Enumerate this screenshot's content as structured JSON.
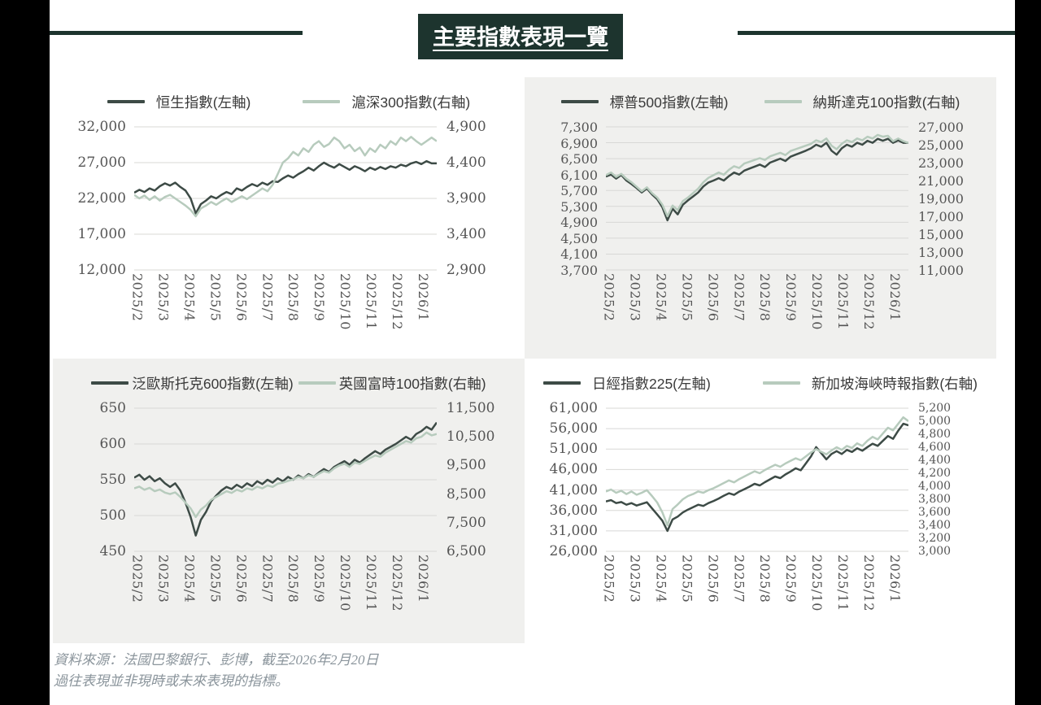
{
  "title": "主要指數表現一覽",
  "colors": {
    "dark_line": "#3d4b46",
    "light_line": "#b7cbbd",
    "title_bg": "#1d342e",
    "panel_gray": "#f0f0ee",
    "border_black": "#000000",
    "tick_text": "#555555"
  },
  "footer": {
    "line1": "資料來源：法國巴黎銀行、彭博，截至2026年2月20日",
    "line2": "過往表現並非現時或未來表現的指標。"
  },
  "chart_data": [
    {
      "type": "line",
      "x": [
        "2025/2",
        "2025/3",
        "2025/4",
        "2025/5",
        "2025/6",
        "2025/7",
        "2025/8",
        "2025/9",
        "2025/10",
        "2025/11",
        "2025/12",
        "2026/1"
      ],
      "left_axis": {
        "ticks": [
          "32,000",
          "27,000",
          "22,000",
          "17,000",
          "12,000"
        ],
        "min": 12000,
        "max": 32000
      },
      "right_axis": {
        "ticks": [
          "4,900",
          "4,400",
          "3,900",
          "3,400",
          "2,900"
        ],
        "min": 2900,
        "max": 4900
      },
      "series": [
        {
          "name": "恒生指數(左軸)",
          "axis": "left",
          "color": "#3d4b46",
          "values": [
            22800,
            23200,
            22900,
            23400,
            23100,
            23700,
            24100,
            23800,
            24200,
            23600,
            23100,
            22000,
            19900,
            21200,
            21700,
            22300,
            22000,
            22500,
            22900,
            22600,
            23400,
            23100,
            23600,
            24000,
            23700,
            24200,
            23900,
            24400,
            24300,
            24800,
            25200,
            24900,
            25400,
            25800,
            26300,
            25900,
            26500,
            27000,
            26600,
            26300,
            26800,
            26400,
            26000,
            26500,
            26200,
            25800,
            26300,
            26000,
            26400,
            26100,
            26500,
            26300,
            26700,
            26500,
            26900,
            27100,
            26800,
            27200,
            26900,
            26900
          ]
        },
        {
          "name": "滬深300指數(右軸)",
          "axis": "right",
          "color": "#b7cbbd",
          "values": [
            3950,
            3900,
            3940,
            3880,
            3930,
            3870,
            3920,
            3950,
            3900,
            3850,
            3800,
            3740,
            3650,
            3760,
            3800,
            3850,
            3810,
            3860,
            3900,
            3850,
            3890,
            3930,
            3890,
            3940,
            3990,
            4040,
            4000,
            4090,
            4240,
            4400,
            4460,
            4550,
            4500,
            4600,
            4550,
            4650,
            4700,
            4620,
            4660,
            4750,
            4700,
            4600,
            4650,
            4560,
            4610,
            4500,
            4600,
            4550,
            4650,
            4600,
            4700,
            4650,
            4750,
            4700,
            4760,
            4700,
            4650,
            4700,
            4750,
            4700
          ]
        }
      ]
    },
    {
      "type": "line",
      "x": [
        "2025/2",
        "2025/3",
        "2025/4",
        "2025/5",
        "2025/6",
        "2025/7",
        "2025/8",
        "2025/9",
        "2025/10",
        "2025/11",
        "2025/12",
        "2026/1"
      ],
      "left_axis": {
        "ticks": [
          "7,300",
          "6,900",
          "6,500",
          "6,100",
          "5,700",
          "5,300",
          "4,900",
          "4,500",
          "4,100",
          "3,700"
        ],
        "min": 3700,
        "max": 7300
      },
      "right_axis": {
        "ticks": [
          "27,000",
          "25,000",
          "23,000",
          "21,000",
          "19,000",
          "17,000",
          "15,000",
          "13,000",
          "11,000"
        ],
        "min": 11000,
        "max": 27000
      },
      "series": [
        {
          "name": "標普500指數(左軸)",
          "axis": "left",
          "color": "#3d4b46",
          "values": [
            6050,
            6100,
            6000,
            6090,
            5950,
            5860,
            5760,
            5650,
            5750,
            5600,
            5480,
            5280,
            4950,
            5240,
            5100,
            5340,
            5450,
            5550,
            5650,
            5800,
            5900,
            5950,
            6010,
            5950,
            6060,
            6150,
            6100,
            6200,
            6250,
            6300,
            6350,
            6290,
            6400,
            6450,
            6500,
            6440,
            6550,
            6600,
            6650,
            6700,
            6760,
            6850,
            6800,
            6900,
            6700,
            6600,
            6760,
            6850,
            6800,
            6900,
            6850,
            6950,
            6900,
            7000,
            6950,
            7000,
            6900,
            6960,
            6900,
            6900
          ]
        },
        {
          "name": "納斯達克100指數(右軸)",
          "axis": "right",
          "color": "#b7cbbd",
          "values": [
            21600,
            21900,
            21400,
            21750,
            21200,
            20800,
            20300,
            19800,
            20250,
            19600,
            19100,
            18300,
            17000,
            18200,
            17700,
            18700,
            19100,
            19600,
            20100,
            20800,
            21300,
            21600,
            21900,
            21650,
            22200,
            22600,
            22400,
            22900,
            23100,
            23300,
            23500,
            23300,
            23700,
            23900,
            24100,
            23850,
            24300,
            24500,
            24700,
            24900,
            25100,
            25500,
            25300,
            25700,
            24900,
            24500,
            25100,
            25500,
            25300,
            25700,
            25500,
            25900,
            25700,
            26100,
            25900,
            26000,
            25400,
            25700,
            25400,
            25200
          ]
        }
      ]
    },
    {
      "type": "line",
      "x": [
        "2025/2",
        "2025/3",
        "2025/4",
        "2025/5",
        "2025/6",
        "2025/7",
        "2025/8",
        "2025/9",
        "2025/10",
        "2025/11",
        "2025/12",
        "2026/1"
      ],
      "left_axis": {
        "ticks": [
          "650",
          "600",
          "550",
          "500",
          "450"
        ],
        "min": 450,
        "max": 650
      },
      "right_axis": {
        "ticks": [
          "11,500",
          "10,500",
          "9,500",
          "8,500",
          "7,500",
          "6,500"
        ],
        "min": 6500,
        "max": 11500
      },
      "series": [
        {
          "name": "泛歐斯托克600指數(左軸)",
          "axis": "left",
          "color": "#3d4b46",
          "values": [
            553,
            557,
            550,
            555,
            548,
            552,
            545,
            540,
            545,
            535,
            518,
            498,
            472,
            494,
            505,
            520,
            528,
            535,
            540,
            537,
            543,
            539,
            545,
            541,
            548,
            544,
            550,
            546,
            552,
            548,
            554,
            550,
            556,
            552,
            558,
            554,
            560,
            565,
            561,
            568,
            572,
            576,
            571,
            578,
            574,
            580,
            585,
            590,
            586,
            592,
            596,
            600,
            605,
            610,
            606,
            614,
            618,
            624,
            620,
            630
          ]
        },
        {
          "name": "英國富時100指數(右軸)",
          "axis": "right",
          "color": "#b7cbbd",
          "values": [
            8700,
            8760,
            8650,
            8720,
            8600,
            8660,
            8550,
            8500,
            8560,
            8400,
            8200,
            8000,
            7700,
            7960,
            8100,
            8300,
            8400,
            8500,
            8600,
            8540,
            8650,
            8590,
            8700,
            8650,
            8760,
            8700,
            8800,
            8750,
            8860,
            8900,
            8960,
            9010,
            9100,
            9050,
            9160,
            9100,
            9210,
            9300,
            9250,
            9400,
            9500,
            9560,
            9450,
            9600,
            9550,
            9660,
            9760,
            9850,
            9800,
            9950,
            10050,
            10150,
            10250,
            10350,
            10300,
            10450,
            10500,
            10650,
            10550,
            10600
          ]
        }
      ]
    },
    {
      "type": "line",
      "x": [
        "2025/2",
        "2025/3",
        "2025/4",
        "2025/5",
        "2025/6",
        "2025/7",
        "2025/8",
        "2025/9",
        "2025/10",
        "2025/11",
        "2025/12",
        "2026/1"
      ],
      "left_axis": {
        "ticks": [
          "61,000",
          "56,000",
          "51,000",
          "46,000",
          "41,000",
          "36,000",
          "31,000",
          "26,000"
        ],
        "min": 26000,
        "max": 61000
      },
      "right_axis": {
        "ticks": [
          "5,200",
          "5,000",
          "4,800",
          "4,600",
          "4,400",
          "4,200",
          "4,000",
          "3,800",
          "3,600",
          "3,400",
          "3,200",
          "3,000"
        ],
        "min": 3000,
        "max": 5200
      },
      "series": [
        {
          "name": "日經指數225(左軸)",
          "axis": "left",
          "color": "#3d4b46",
          "values": [
            38200,
            38500,
            37800,
            38050,
            37400,
            37800,
            37200,
            37600,
            38000,
            36500,
            35000,
            33500,
            31000,
            33800,
            34500,
            35500,
            36200,
            36800,
            37400,
            37100,
            37800,
            38300,
            38900,
            39600,
            40200,
            39800,
            40600,
            41200,
            41800,
            42500,
            42100,
            42900,
            43600,
            44300,
            43900,
            44800,
            45500,
            46300,
            45800,
            47500,
            49200,
            51500,
            50000,
            48500,
            49800,
            50500,
            49800,
            50800,
            50300,
            51200,
            50600,
            51500,
            52300,
            51800,
            53000,
            54200,
            53500,
            55500,
            57200,
            56800
          ]
        },
        {
          "name": "新加坡海峽時報指數(右軸)",
          "axis": "right",
          "color": "#b7cbbd",
          "values": [
            3920,
            3950,
            3900,
            3930,
            3880,
            3920,
            3870,
            3900,
            3940,
            3850,
            3750,
            3600,
            3400,
            3650,
            3720,
            3800,
            3850,
            3880,
            3920,
            3900,
            3940,
            3970,
            4010,
            4050,
            4090,
            4060,
            4110,
            4150,
            4190,
            4230,
            4200,
            4250,
            4290,
            4330,
            4300,
            4350,
            4390,
            4430,
            4400,
            4460,
            4520,
            4570,
            4530,
            4490,
            4550,
            4600,
            4560,
            4620,
            4590,
            4660,
            4620,
            4700,
            4760,
            4720,
            4810,
            4900,
            4860,
            4960,
            5060,
            5000
          ]
        }
      ]
    }
  ]
}
